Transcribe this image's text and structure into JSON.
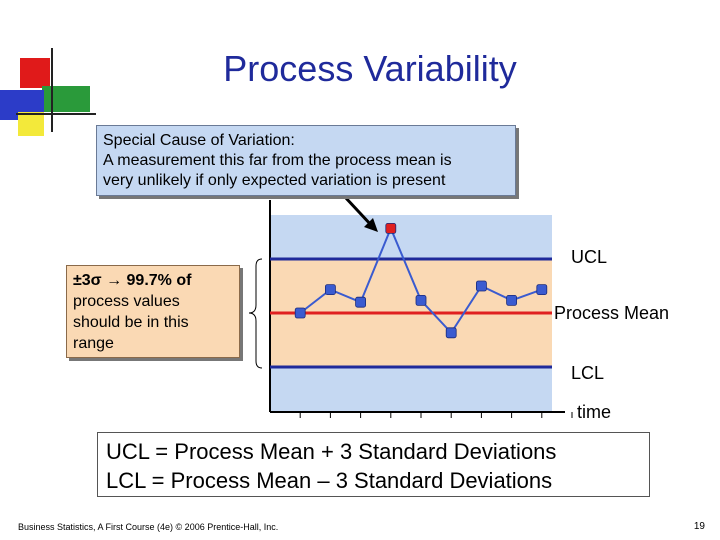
{
  "slide": {
    "title": "Process Variability",
    "callout_lines": [
      "Special Cause of Variation:",
      "A measurement this far from the process mean is",
      "very unlikely if only expected variation is present"
    ],
    "range_note": {
      "lead": "±3σ → 99.7% of",
      "rest": [
        "process values",
        "should be in this",
        "range"
      ]
    },
    "formulas": [
      "UCL = Process Mean + 3 Standard Deviations",
      "LCL = Process Mean – 3 Standard Deviations"
    ],
    "footer_left": "Business Statistics, A First Course (4e) © 2006 Prentice-Hall, Inc.",
    "page_number": "19",
    "colors": {
      "title": "#1f2a9b",
      "plot_outer": "#c5d8f2",
      "plot_inner": "#fad9b4",
      "control_lines": "#1f2a9b",
      "mean_line": "#e02020",
      "series": "#3a5bd0",
      "special_point": "#e02020"
    }
  },
  "chart_data": {
    "type": "line",
    "xlabel": "time",
    "ylabel": "",
    "x": [
      1,
      2,
      3,
      4,
      5,
      6,
      7,
      8,
      9
    ],
    "y": [
      0,
      1.3,
      0.6,
      4.7,
      0.7,
      -1.1,
      1.5,
      0.7,
      1.3
    ],
    "special_cause_index": 3,
    "ylim": [
      -3.6,
      5.5
    ],
    "xlim": [
      0,
      10
    ],
    "reference_lines": [
      {
        "name": "UCL",
        "y": 3
      },
      {
        "name": "Process Mean",
        "y": 0
      },
      {
        "name": "LCL",
        "y": -3
      }
    ],
    "grid": false
  }
}
